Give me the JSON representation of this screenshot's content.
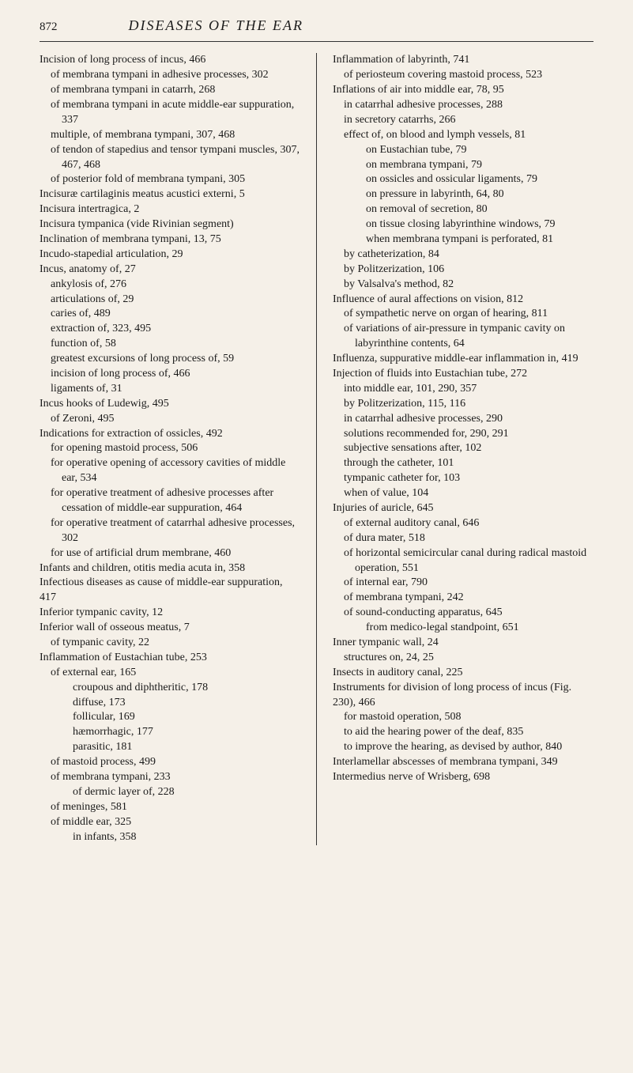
{
  "page_number": "872",
  "title": "DISEASES OF THE EAR",
  "left": [
    {
      "l": 0,
      "t": "Incision of long process of incus, 466"
    },
    {
      "l": 1,
      "t": "of membrana tympani in adhesive processes, 302"
    },
    {
      "l": 1,
      "t": "of membrana tympani in catarrh, 268"
    },
    {
      "l": 1,
      "t": "of membrana tympani in acute middle-ear suppuration, 337"
    },
    {
      "l": 1,
      "t": "multiple, of membrana tympani, 307, 468"
    },
    {
      "l": 1,
      "t": "of tendon of stapedius and tensor tympani muscles, 307, 467, 468"
    },
    {
      "l": 1,
      "t": "of posterior fold of membrana tympani, 305"
    },
    {
      "l": 0,
      "t": "Incisuræ cartilaginis meatus acustici externi, 5"
    },
    {
      "l": 0,
      "t": "Incisura intertragica, 2"
    },
    {
      "l": 0,
      "t": "Incisura tympanica (vide Rivinian segment)"
    },
    {
      "l": 0,
      "t": "Inclination of membrana tympani, 13, 75"
    },
    {
      "l": 0,
      "t": "Incudo-stapedial articulation, 29"
    },
    {
      "l": 0,
      "t": "Incus, anatomy of, 27"
    },
    {
      "l": 1,
      "t": "ankylosis of, 276"
    },
    {
      "l": 1,
      "t": "articulations of, 29"
    },
    {
      "l": 1,
      "t": "caries of, 489"
    },
    {
      "l": 1,
      "t": "extraction of, 323, 495"
    },
    {
      "l": 1,
      "t": "function of, 58"
    },
    {
      "l": 1,
      "t": "greatest excursions of long process of, 59"
    },
    {
      "l": 1,
      "t": "incision of long process of, 466"
    },
    {
      "l": 1,
      "t": "ligaments of, 31"
    },
    {
      "l": 0,
      "t": "Incus hooks of Ludewig, 495"
    },
    {
      "l": 1,
      "t": "of Zeroni, 495"
    },
    {
      "l": 0,
      "t": "Indications for extraction of ossicles, 492"
    },
    {
      "l": 1,
      "t": "for opening mastoid process, 506"
    },
    {
      "l": 1,
      "t": "for operative opening of accessory cavities of middle ear, 534"
    },
    {
      "l": 1,
      "t": "for operative treatment of adhesive processes after cessation of middle-ear suppuration, 464"
    },
    {
      "l": 1,
      "t": "for operative treatment of catarrhal adhesive processes, 302"
    },
    {
      "l": 1,
      "t": "for use of artificial drum membrane, 460"
    },
    {
      "l": 0,
      "t": "Infants and children, otitis media acuta in, 358"
    },
    {
      "l": 0,
      "t": "Infectious diseases as cause of middle-ear suppuration, 417"
    },
    {
      "l": 0,
      "t": "Inferior tympanic cavity, 12"
    },
    {
      "l": 0,
      "t": "Inferior wall of osseous meatus, 7"
    },
    {
      "l": 1,
      "t": "of tympanic cavity, 22"
    },
    {
      "l": 0,
      "t": "Inflammation of Eustachian tube, 253"
    },
    {
      "l": 1,
      "t": "of external ear, 165"
    },
    {
      "l": 2,
      "t": "croupous and diphtheritic, 178"
    },
    {
      "l": 2,
      "t": "diffuse, 173"
    },
    {
      "l": 2,
      "t": "follicular, 169"
    },
    {
      "l": 2,
      "t": "hæmorrhagic, 177"
    },
    {
      "l": 2,
      "t": "parasitic, 181"
    },
    {
      "l": 1,
      "t": "of mastoid process, 499"
    },
    {
      "l": 1,
      "t": "of membrana tympani, 233"
    },
    {
      "l": 2,
      "t": "of dermic layer of, 228"
    },
    {
      "l": 1,
      "t": "of meninges, 581"
    },
    {
      "l": 1,
      "t": "of middle ear, 325"
    },
    {
      "l": 2,
      "t": "in infants, 358"
    }
  ],
  "right": [
    {
      "l": 0,
      "t": "Inflammation of labyrinth, 741"
    },
    {
      "l": 1,
      "t": "of periosteum covering mastoid process, 523"
    },
    {
      "l": 0,
      "t": "Inflations of air into middle ear, 78, 95"
    },
    {
      "l": 1,
      "t": "in catarrhal adhesive processes, 288"
    },
    {
      "l": 1,
      "t": "in secretory catarrhs, 266"
    },
    {
      "l": 1,
      "t": "effect of, on blood and lymph vessels, 81"
    },
    {
      "l": 2,
      "t": "on Eustachian tube, 79"
    },
    {
      "l": 2,
      "t": "on membrana tympani, 79"
    },
    {
      "l": 2,
      "t": "on ossicles and ossicular ligaments, 79"
    },
    {
      "l": 2,
      "t": "on pressure in labyrinth, 64, 80"
    },
    {
      "l": 2,
      "t": "on removal of secretion, 80"
    },
    {
      "l": 2,
      "t": "on tissue closing labyrinthine windows, 79"
    },
    {
      "l": 2,
      "t": "when membrana tympani is perforated, 81"
    },
    {
      "l": 1,
      "t": "by catheterization, 84"
    },
    {
      "l": 1,
      "t": "by Politzerization, 106"
    },
    {
      "l": 1,
      "t": "by Valsalva's method, 82"
    },
    {
      "l": 0,
      "t": "Influence of aural affections on vision, 812"
    },
    {
      "l": 1,
      "t": "of sympathetic nerve on organ of hearing, 811"
    },
    {
      "l": 1,
      "t": "of variations of air-pressure in tympanic cavity on labyrinthine contents, 64"
    },
    {
      "l": 0,
      "t": "Influenza, suppurative middle-ear inflammation in, 419"
    },
    {
      "l": 0,
      "t": "Injection of fluids into Eustachian tube, 272"
    },
    {
      "l": 1,
      "t": "into middle ear, 101, 290, 357"
    },
    {
      "l": 1,
      "t": "by Politzerization, 115, 116"
    },
    {
      "l": 1,
      "t": "in catarrhal adhesive processes, 290"
    },
    {
      "l": 1,
      "t": "solutions recommended for, 290, 291"
    },
    {
      "l": 1,
      "t": "subjective sensations after, 102"
    },
    {
      "l": 1,
      "t": "through the catheter, 101"
    },
    {
      "l": 1,
      "t": "tympanic catheter for, 103"
    },
    {
      "l": 1,
      "t": "when of value, 104"
    },
    {
      "l": 0,
      "t": "Injuries of auricle, 645"
    },
    {
      "l": 1,
      "t": "of external auditory canal, 646"
    },
    {
      "l": 1,
      "t": "of dura mater, 518"
    },
    {
      "l": 1,
      "t": "of horizontal semicircular canal during radical mastoid operation, 551"
    },
    {
      "l": 1,
      "t": "of internal ear, 790"
    },
    {
      "l": 1,
      "t": "of membrana tympani, 242"
    },
    {
      "l": 1,
      "t": "of sound-conducting apparatus, 645"
    },
    {
      "l": 2,
      "t": "from medico-legal standpoint, 651"
    },
    {
      "l": 0,
      "t": "Inner tympanic wall, 24"
    },
    {
      "l": 1,
      "t": "structures on, 24, 25"
    },
    {
      "l": 0,
      "t": "Insects in auditory canal, 225"
    },
    {
      "l": 0,
      "t": "Instruments for division of long process of incus (Fig. 230), 466"
    },
    {
      "l": 1,
      "t": "for mastoid operation, 508"
    },
    {
      "l": 1,
      "t": "to aid the hearing power of the deaf, 835"
    },
    {
      "l": 1,
      "t": "to improve the hearing, as devised by author, 840"
    },
    {
      "l": 0,
      "t": "Interlamellar abscesses of membrana tympani, 349"
    },
    {
      "l": 0,
      "t": "Intermedius nerve of Wrisberg, 698"
    }
  ]
}
